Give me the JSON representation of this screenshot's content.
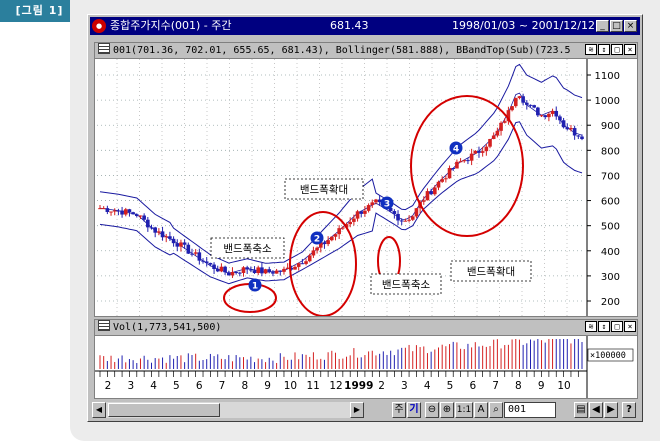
{
  "figure_label": "[그림 1]",
  "window": {
    "title": "종합주가지수(001) - 주간",
    "value": "681.43",
    "date_range": "1998/01/03 ~ 2001/12/12",
    "btn_min": "_",
    "btn_max": "□",
    "btn_close": "×",
    "app_icon": "app-logo-icon"
  },
  "price_pane": {
    "header": "001(701.36, 702.01, 655.65, 681.43), Bollinger(581.888), BBandTop(Sub)(723.5",
    "y_ticks": [
      "1100",
      "1000",
      "900",
      "800",
      "700",
      "600",
      "500",
      "400",
      "300",
      "200"
    ]
  },
  "volume_pane": {
    "header": "Vol(1,773,541,500)",
    "scale_label": "×100000"
  },
  "pane_buttons": [
    "≋",
    "↕",
    "□",
    "×"
  ],
  "annotations": [
    {
      "num": "1",
      "label": "밴드폭축소"
    },
    {
      "num": "2",
      "label": "밴드폭확대"
    },
    {
      "num": "3",
      "label": "밴드폭축소"
    },
    {
      "num": "4",
      "label": "밴드폭확대"
    }
  ],
  "x_axis": {
    "labels": [
      "2",
      "3",
      "4",
      "5",
      "6",
      "7",
      "8",
      "9",
      "10",
      "11",
      "12",
      "1999",
      "2",
      "3",
      "4",
      "5",
      "6",
      "7",
      "8",
      "9",
      "10"
    ]
  },
  "toolbar": {
    "jugi": "주",
    "gi": "기",
    "zoom_out": "⊖",
    "zoom_in": "⊕",
    "ratio": "1:1",
    "font": "A",
    "code_value": "001"
  },
  "colors": {
    "up": "#d42020",
    "down": "#2020b0",
    "band": "#1a1aa0",
    "circle": "#d40000"
  }
}
